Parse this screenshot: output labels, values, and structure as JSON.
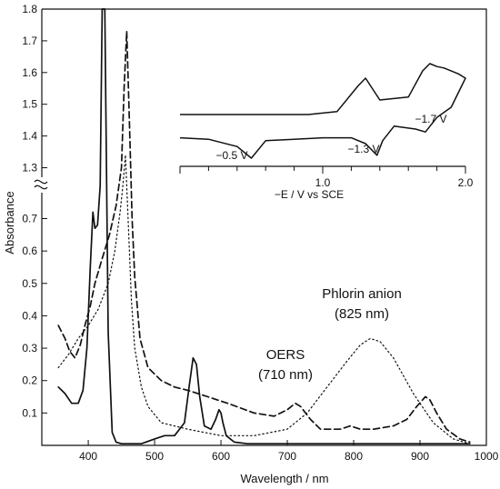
{
  "chart_data": [
    {
      "type": "line",
      "title": "",
      "xlabel": "Wavelength / nm",
      "ylabel": "Absorbance",
      "xlim": [
        330,
        1000
      ],
      "ylim_lower": [
        0,
        0.78
      ],
      "ylim_upper": [
        1.27,
        1.8
      ],
      "axis_break": true,
      "grid": false,
      "x_ticks": [
        400,
        500,
        600,
        700,
        800,
        900,
        1000
      ],
      "y_ticks_lower": [
        0.1,
        0.2,
        0.3,
        0.4,
        0.5,
        0.6,
        0.7
      ],
      "y_ticks_upper": [
        1.3,
        1.4,
        1.5,
        1.6,
        1.7,
        1.8
      ],
      "series": [
        {
          "style": "solid",
          "x": [
            355,
            365,
            375,
            385,
            392,
            398,
            403,
            407,
            410,
            414,
            418,
            421,
            425,
            430,
            436,
            442,
            450,
            460,
            480,
            500,
            515,
            530,
            545,
            552,
            558,
            563,
            568,
            575,
            585,
            592,
            597,
            600,
            603,
            608,
            620,
            640,
            680,
            750,
            850,
            950,
            975
          ],
          "y": [
            0.18,
            0.16,
            0.13,
            0.13,
            0.17,
            0.3,
            0.55,
            0.72,
            0.67,
            0.68,
            1.0,
            1.8,
            1.8,
            0.35,
            0.04,
            0.01,
            0.005,
            0.005,
            0.005,
            0.02,
            0.03,
            0.03,
            0.07,
            0.18,
            0.27,
            0.25,
            0.15,
            0.06,
            0.05,
            0.08,
            0.11,
            0.1,
            0.07,
            0.03,
            0.01,
            0.005,
            0.005,
            0.005,
            0.005,
            0.005,
            0.005
          ]
        },
        {
          "style": "dashed",
          "x": [
            355,
            365,
            372,
            380,
            388,
            395,
            403,
            410,
            420,
            432,
            442,
            450,
            454,
            458,
            462,
            466,
            470,
            478,
            490,
            510,
            530,
            550,
            580,
            610,
            650,
            680,
            700,
            712,
            720,
            735,
            750,
            765,
            780,
            795,
            810,
            830,
            860,
            880,
            895,
            908,
            915,
            925,
            940,
            960,
            975
          ],
          "y": [
            0.37,
            0.33,
            0.29,
            0.27,
            0.31,
            0.37,
            0.43,
            0.5,
            0.57,
            0.65,
            0.74,
            1.3,
            1.55,
            1.73,
            1.45,
            0.7,
            0.52,
            0.33,
            0.24,
            0.2,
            0.18,
            0.17,
            0.15,
            0.13,
            0.1,
            0.09,
            0.11,
            0.13,
            0.12,
            0.08,
            0.05,
            0.05,
            0.05,
            0.06,
            0.05,
            0.05,
            0.06,
            0.08,
            0.12,
            0.15,
            0.14,
            0.1,
            0.05,
            0.02,
            0.01
          ]
        },
        {
          "style": "dotted",
          "x": [
            355,
            370,
            385,
            400,
            415,
            430,
            440,
            448,
            452,
            456,
            460,
            465,
            470,
            480,
            490,
            510,
            550,
            600,
            650,
            700,
            730,
            760,
            790,
            810,
            825,
            840,
            860,
            890,
            920,
            950,
            975
          ],
          "y": [
            0.24,
            0.28,
            0.33,
            0.37,
            0.42,
            0.5,
            0.6,
            0.72,
            0.95,
            1.34,
            0.7,
            0.45,
            0.3,
            0.18,
            0.12,
            0.07,
            0.05,
            0.03,
            0.03,
            0.05,
            0.1,
            0.18,
            0.26,
            0.31,
            0.33,
            0.32,
            0.27,
            0.16,
            0.07,
            0.02,
            0.005
          ]
        }
      ],
      "annotations": [
        {
          "text": "OERS",
          "x": 715,
          "y": 0.25
        },
        {
          "text": "(710 nm)",
          "x": 715,
          "y": 0.2
        },
        {
          "text": "Phlorin anion",
          "x": 840,
          "y": 0.43
        },
        {
          "text": "(825 nm)",
          "x": 840,
          "y": 0.38
        }
      ]
    },
    {
      "type": "line",
      "title": "",
      "xlabel": "−E / V vs SCE",
      "xlim": [
        0,
        2.0
      ],
      "x_ticks": [
        1.0,
        2.0
      ],
      "x_tick_labels": [
        "1.0",
        "2.0"
      ],
      "grid": false,
      "series": [
        {
          "style": "solid",
          "description_points_x": [
            0.0,
            0.3,
            0.5,
            0.7,
            0.9,
            1.1,
            1.25,
            1.3,
            1.4,
            1.6,
            1.7,
            1.75,
            1.8,
            1.85,
            1.95,
            2.0,
            1.9,
            1.8,
            1.72,
            1.65,
            1.5,
            1.42,
            1.38,
            1.3,
            1.2,
            1.0,
            0.8,
            0.6,
            0.5,
            0.4,
            0.2,
            0.0
          ],
          "description_points_y": [
            0.0,
            0.0,
            0.0,
            0.0,
            0.0,
            0.02,
            0.2,
            0.25,
            0.1,
            0.12,
            0.3,
            0.35,
            0.33,
            0.32,
            0.28,
            0.25,
            0.05,
            -0.02,
            -0.12,
            -0.1,
            -0.08,
            -0.18,
            -0.28,
            -0.2,
            -0.16,
            -0.16,
            -0.17,
            -0.18,
            -0.3,
            -0.22,
            -0.17,
            -0.16
          ]
        }
      ],
      "annotations": [
        {
          "text": "−0.5 V",
          "x": 0.45
        },
        {
          "text": "−1.3 V",
          "x": 1.3
        },
        {
          "text": "−1.7 V",
          "x": 1.75
        }
      ]
    }
  ]
}
